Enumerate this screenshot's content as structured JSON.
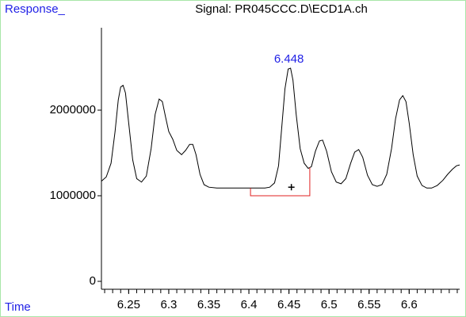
{
  "chart_data": {
    "type": "line",
    "title": "Signal: PR045CCC.D\\ECD1A.ch",
    "y_label": "Response_",
    "x_label": "Time",
    "color": "#000000",
    "x": [
      6.216,
      6.222,
      6.228,
      6.233,
      6.237,
      6.24,
      6.243,
      6.246,
      6.25,
      6.255,
      6.26,
      6.266,
      6.272,
      6.278,
      6.283,
      6.288,
      6.292,
      6.296,
      6.3,
      6.305,
      6.31,
      6.316,
      6.321,
      6.326,
      6.33,
      6.334,
      6.339,
      6.344,
      6.35,
      6.36,
      6.37,
      6.38,
      6.39,
      6.4,
      6.41,
      6.42,
      6.426,
      6.432,
      6.437,
      6.441,
      6.445,
      6.449,
      6.452,
      6.455,
      6.459,
      6.464,
      6.469,
      6.474,
      6.478,
      6.483,
      6.488,
      6.492,
      6.497,
      6.503,
      6.509,
      6.515,
      6.521,
      6.527,
      6.532,
      6.537,
      6.542,
      6.548,
      6.554,
      6.56,
      6.566,
      6.572,
      6.578,
      6.583,
      6.588,
      6.592,
      6.596,
      6.6,
      6.605,
      6.61,
      6.616,
      6.622,
      6.628,
      6.635,
      6.642,
      6.648,
      6.654,
      6.659,
      6.663
    ],
    "values": [
      1170000,
      1220000,
      1380000,
      1750000,
      2120000,
      2270000,
      2290000,
      2200000,
      1850000,
      1420000,
      1200000,
      1160000,
      1230000,
      1550000,
      1950000,
      2130000,
      2100000,
      1920000,
      1750000,
      1660000,
      1530000,
      1480000,
      1530000,
      1600000,
      1600000,
      1480000,
      1250000,
      1130000,
      1100000,
      1090000,
      1090000,
      1090000,
      1090000,
      1090000,
      1090000,
      1090000,
      1100000,
      1150000,
      1350000,
      1800000,
      2250000,
      2480000,
      2490000,
      2350000,
      1950000,
      1550000,
      1380000,
      1320000,
      1340000,
      1520000,
      1640000,
      1650000,
      1520000,
      1280000,
      1160000,
      1140000,
      1200000,
      1380000,
      1510000,
      1540000,
      1450000,
      1240000,
      1130000,
      1110000,
      1130000,
      1250000,
      1550000,
      1900000,
      2120000,
      2170000,
      2100000,
      1850000,
      1480000,
      1230000,
      1120000,
      1090000,
      1090000,
      1120000,
      1180000,
      1250000,
      1310000,
      1350000,
      1360000
    ],
    "peak_label": 6.448,
    "peak_label_color": "#1f1fe6",
    "integration": {
      "x": [
        6.402,
        6.402,
        6.476,
        6.476
      ],
      "values": [
        1090000,
        1000000,
        1000000,
        1330000
      ],
      "color": "#e02020"
    },
    "marker": {
      "x": 6.453,
      "value": 1100000
    },
    "xlim": [
      6.216,
      6.663
    ],
    "ylim": [
      -92600,
      2963000
    ],
    "xticks": [
      6.25,
      6.3,
      6.35,
      6.4,
      6.45,
      6.5,
      6.55,
      6.6
    ],
    "xminorticks": [
      6.22,
      6.23,
      6.24,
      6.25,
      6.26,
      6.27,
      6.28,
      6.29,
      6.3,
      6.31,
      6.32,
      6.33,
      6.34,
      6.35,
      6.36,
      6.37,
      6.38,
      6.39,
      6.4,
      6.41,
      6.42,
      6.43,
      6.44,
      6.45,
      6.46,
      6.47,
      6.48,
      6.49,
      6.5,
      6.51,
      6.52,
      6.53,
      6.54,
      6.55,
      6.56,
      6.57,
      6.58,
      6.59,
      6.6,
      6.61,
      6.62,
      6.63,
      6.64,
      6.65,
      6.66
    ],
    "yticks": [
      0,
      1000000,
      2000000
    ]
  }
}
